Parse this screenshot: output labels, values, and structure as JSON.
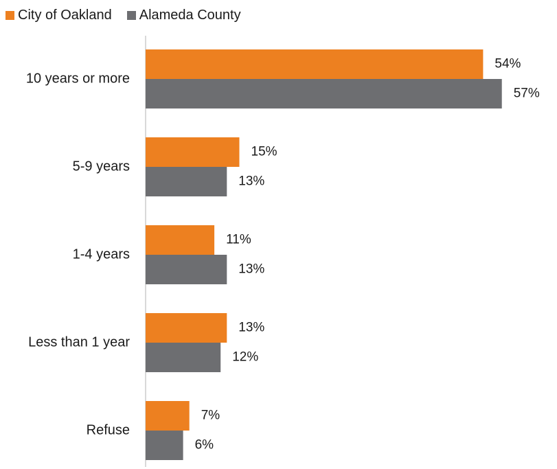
{
  "chart_data": {
    "type": "bar",
    "orientation": "horizontal",
    "categories": [
      "10 years or more",
      "5-9 years",
      "1-4 years",
      "Less than 1 year",
      "Refuse"
    ],
    "series": [
      {
        "name": "City of Oakland",
        "values": [
          54,
          15,
          11,
          13,
          7
        ],
        "color": "#ed8020",
        "labels": [
          "54%",
          "15%",
          "11%",
          "13%",
          "7%"
        ]
      },
      {
        "name": "Alameda County",
        "values": [
          57,
          13,
          13,
          12,
          6
        ],
        "color": "#6d6e71",
        "labels": [
          "57%",
          "13%",
          "13%",
          "12%",
          "6%"
        ]
      }
    ],
    "xlim": [
      0,
      60
    ],
    "grid": false,
    "legend_position": "top-left",
    "title": "",
    "xlabel": "",
    "ylabel": ""
  }
}
